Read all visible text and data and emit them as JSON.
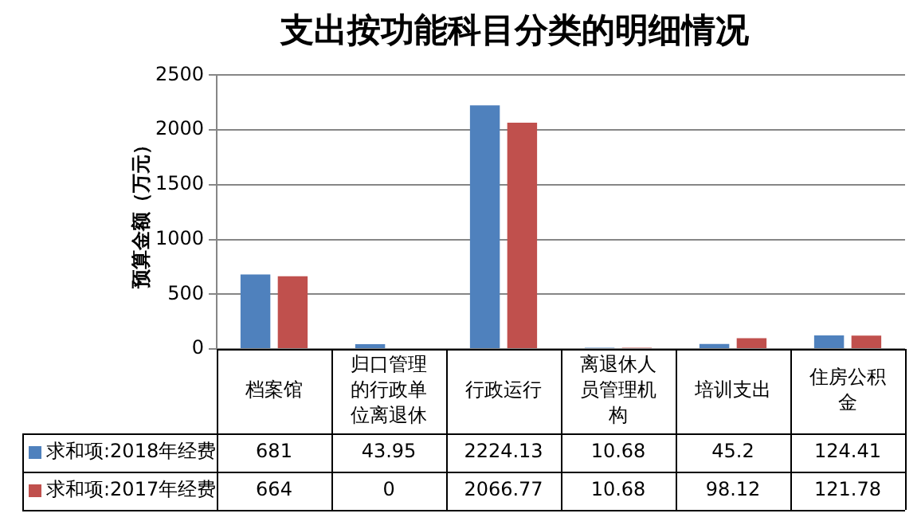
{
  "chart_data": {
    "type": "bar",
    "title": "支出按功能科目分类的明细情况",
    "ylabel": "预算金额（万元）",
    "categories": [
      "档案馆",
      "归口管理的行政单位离退休",
      "行政运行",
      "离退休人员管理机构",
      "培训支出",
      "住房公积金"
    ],
    "series": [
      {
        "name": "求和项:2018年经费",
        "color": "#4f81bd",
        "values": [
          681,
          43.95,
          2224.13,
          10.68,
          45.2,
          124.41
        ]
      },
      {
        "name": "求和项:2017年经费",
        "color": "#c0504d",
        "values": [
          664,
          0,
          2066.77,
          10.68,
          98.12,
          121.78
        ]
      }
    ],
    "ylim": [
      0,
      2500
    ],
    "yticks": [
      0,
      500,
      1000,
      1500,
      2000,
      2500
    ],
    "grid": "y",
    "legend": "bottom",
    "data_labels": true
  }
}
